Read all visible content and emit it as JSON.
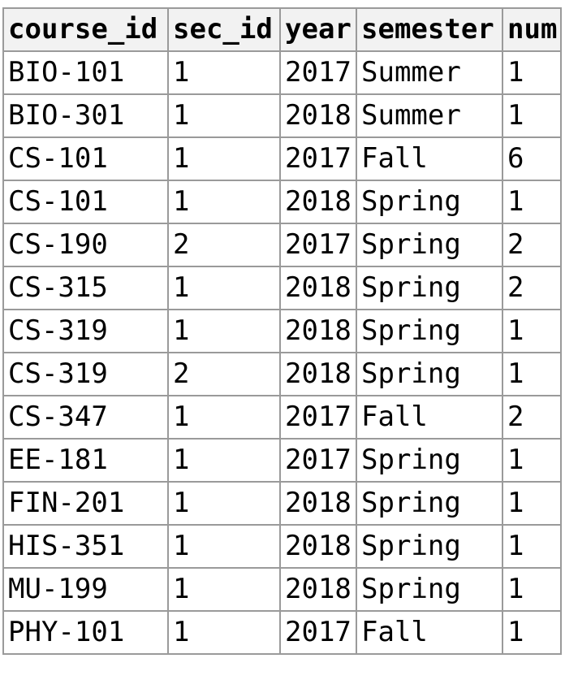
{
  "table": {
    "columns": [
      "course_id",
      "sec_id",
      "year",
      "semester",
      "num"
    ],
    "rows": [
      [
        "BIO-101",
        "1",
        "2017",
        "Summer",
        "1"
      ],
      [
        "BIO-301",
        "1",
        "2018",
        "Summer",
        "1"
      ],
      [
        "CS-101",
        "1",
        "2017",
        "Fall",
        "6"
      ],
      [
        "CS-101",
        "1",
        "2018",
        "Spring",
        "1"
      ],
      [
        "CS-190",
        "2",
        "2017",
        "Spring",
        "2"
      ],
      [
        "CS-315",
        "1",
        "2018",
        "Spring",
        "2"
      ],
      [
        "CS-319",
        "1",
        "2018",
        "Spring",
        "1"
      ],
      [
        "CS-319",
        "2",
        "2018",
        "Spring",
        "1"
      ],
      [
        "CS-347",
        "1",
        "2017",
        "Fall",
        "2"
      ],
      [
        "EE-181",
        "1",
        "2017",
        "Spring",
        "1"
      ],
      [
        "FIN-201",
        "1",
        "2018",
        "Spring",
        "1"
      ],
      [
        "HIS-351",
        "1",
        "2018",
        "Spring",
        "1"
      ],
      [
        "MU-199",
        "1",
        "2018",
        "Spring",
        "1"
      ],
      [
        "PHY-101",
        "1",
        "2017",
        "Fall",
        "1"
      ]
    ]
  }
}
